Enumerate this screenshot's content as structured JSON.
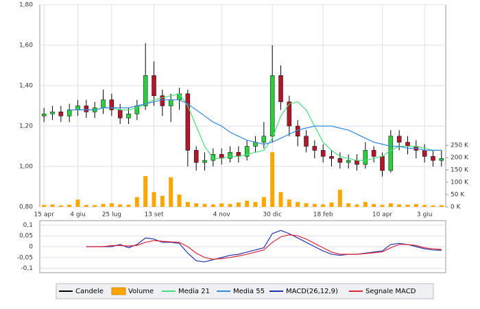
{
  "chart_data": [
    {
      "type": "candlestick",
      "xlim": [
        -0.5,
        47.5
      ],
      "xticks": [
        {
          "value": 0,
          "label": "15 apr"
        },
        {
          "value": 4,
          "label": "4 giu"
        },
        {
          "value": 8,
          "label": "25 lug"
        },
        {
          "value": 13,
          "label": "13 set"
        },
        {
          "value": 21,
          "label": "4 nov"
        },
        {
          "value": 27,
          "label": "30 dic"
        },
        {
          "value": 33,
          "label": "18 feb"
        },
        {
          "value": 40,
          "label": "10 apr"
        },
        {
          "value": 45,
          "label": "3 giu"
        }
      ],
      "ylim": [
        0.8,
        1.8
      ],
      "yticks": [
        {
          "value": 0.8,
          "label": "0,80"
        },
        {
          "value": 1.0,
          "label": "1,00"
        },
        {
          "value": 1.2,
          "label": "1,20"
        },
        {
          "value": 1.4,
          "label": "1,40"
        },
        {
          "value": 1.6,
          "label": "1,60"
        },
        {
          "value": 1.8,
          "label": "1,80"
        }
      ],
      "y2lim": [
        0,
        820000
      ],
      "y2ticks": [
        {
          "value": 0,
          "label": "0 K"
        },
        {
          "value": 50000,
          "label": "50 K"
        },
        {
          "value": 100000,
          "label": "100 K"
        },
        {
          "value": 150000,
          "label": "150 K"
        },
        {
          "value": 200000,
          "label": "200 K"
        },
        {
          "value": 250000,
          "label": "250 K"
        }
      ],
      "grid": true,
      "series": [
        {
          "name": "Candele",
          "type": "candlestick",
          "color": "#000000",
          "up_color": "#2ecc40",
          "down_color": "#b0172a",
          "open": [
            1.25,
            1.26,
            1.27,
            1.25,
            1.28,
            1.3,
            1.27,
            1.29,
            1.33,
            1.28,
            1.24,
            1.26,
            1.3,
            1.45,
            1.35,
            1.3,
            1.33,
            1.36,
            1.08,
            1.02,
            1.03,
            1.06,
            1.04,
            1.07,
            1.05,
            1.1,
            1.12,
            1.15,
            1.45,
            1.32,
            1.2,
            1.15,
            1.1,
            1.08,
            1.05,
            1.04,
            1.02,
            1.03,
            1.01,
            1.08,
            1.05,
            0.98,
            1.15,
            1.12,
            1.1,
            1.08,
            1.05,
            1.03
          ],
          "high": [
            1.29,
            1.3,
            1.3,
            1.31,
            1.33,
            1.33,
            1.32,
            1.38,
            1.36,
            1.31,
            1.29,
            1.33,
            1.61,
            1.52,
            1.38,
            1.36,
            1.39,
            1.38,
            1.1,
            1.07,
            1.09,
            1.09,
            1.1,
            1.1,
            1.13,
            1.15,
            1.22,
            1.6,
            1.5,
            1.35,
            1.23,
            1.18,
            1.13,
            1.11,
            1.08,
            1.07,
            1.06,
            1.06,
            1.12,
            1.1,
            1.07,
            1.18,
            1.18,
            1.15,
            1.13,
            1.11,
            1.08,
            1.08
          ],
          "low": [
            1.22,
            1.23,
            1.22,
            1.22,
            1.25,
            1.24,
            1.24,
            1.26,
            1.25,
            1.21,
            1.21,
            1.23,
            1.28,
            1.3,
            1.25,
            1.22,
            1.28,
            1.0,
            0.98,
            0.98,
            1.0,
            1.01,
            1.02,
            1.02,
            1.03,
            1.07,
            1.09,
            1.12,
            1.28,
            1.15,
            1.1,
            1.07,
            1.04,
            1.02,
            1.0,
            0.99,
            0.99,
            0.98,
            0.99,
            1.02,
            0.95,
            0.97,
            1.08,
            1.06,
            1.04,
            1.02,
            1.0,
            1.0
          ],
          "close": [
            1.26,
            1.27,
            1.25,
            1.28,
            1.3,
            1.27,
            1.29,
            1.33,
            1.28,
            1.24,
            1.26,
            1.3,
            1.45,
            1.35,
            1.3,
            1.33,
            1.36,
            1.08,
            1.02,
            1.03,
            1.06,
            1.04,
            1.07,
            1.05,
            1.1,
            1.12,
            1.15,
            1.45,
            1.32,
            1.2,
            1.15,
            1.1,
            1.08,
            1.05,
            1.04,
            1.02,
            1.03,
            1.01,
            1.08,
            1.05,
            0.98,
            1.15,
            1.12,
            1.1,
            1.08,
            1.05,
            1.03,
            1.04
          ]
        },
        {
          "name": "Volume",
          "type": "bar",
          "axis": "y2",
          "color": "#ffa500",
          "values": [
            8000,
            10000,
            6000,
            9000,
            30000,
            8000,
            7000,
            12000,
            15000,
            10000,
            9000,
            40000,
            125000,
            60000,
            45000,
            120000,
            50000,
            20000,
            15000,
            12000,
            10000,
            14000,
            12000,
            18000,
            25000,
            20000,
            40000,
            222000,
            60000,
            30000,
            20000,
            15000,
            12000,
            10000,
            18000,
            70000,
            15000,
            10000,
            20000,
            12000,
            8000,
            15000,
            10000,
            9000,
            12000,
            8000,
            6000,
            7000
          ]
        },
        {
          "name": "Media 21",
          "type": "line",
          "color": "#44dd77",
          "values": [
            null,
            null,
            null,
            null,
            1.28,
            1.28,
            1.28,
            1.29,
            1.29,
            1.28,
            1.28,
            1.29,
            1.31,
            1.33,
            1.34,
            1.35,
            1.36,
            1.3,
            1.2,
            1.1,
            1.04,
            1.04,
            1.05,
            1.05,
            1.06,
            1.07,
            1.08,
            1.14,
            1.25,
            1.31,
            1.32,
            1.28,
            1.2,
            1.12,
            1.08,
            1.05,
            1.04,
            1.03,
            1.03,
            1.04,
            1.05,
            1.08,
            1.1,
            1.1,
            1.1,
            1.09,
            1.08,
            1.08
          ]
        },
        {
          "name": "Media 55",
          "type": "line",
          "color": "#3388dd",
          "values": [
            null,
            null,
            null,
            1.28,
            1.28,
            1.28,
            1.28,
            1.29,
            1.29,
            1.29,
            1.29,
            1.3,
            1.31,
            1.32,
            1.33,
            1.33,
            1.33,
            1.31,
            1.28,
            1.25,
            1.22,
            1.2,
            1.17,
            1.15,
            1.13,
            1.12,
            1.11,
            1.12,
            1.14,
            1.16,
            1.18,
            1.19,
            1.2,
            1.2,
            1.2,
            1.19,
            1.18,
            1.16,
            1.14,
            1.12,
            1.11,
            1.1,
            1.1,
            1.09,
            1.09,
            1.08,
            1.08,
            1.08
          ]
        }
      ]
    },
    {
      "type": "line",
      "xlim": [
        -0.5,
        47.5
      ],
      "ylim": [
        -0.12,
        0.12
      ],
      "yticks": [
        {
          "value": 0.1,
          "label": "0,1"
        },
        {
          "value": 0.05,
          "label": "0,05"
        },
        0,
        {
          "value": -0.05,
          "label": "-0,05"
        },
        {
          "value": -0.1,
          "label": "-0,1"
        }
      ],
      "grid": true,
      "series": [
        {
          "name": "MACD(26,12,9)",
          "color": "#2233aa",
          "values": [
            null,
            null,
            null,
            null,
            null,
            0,
            0,
            0,
            0,
            0.01,
            -0.005,
            0.01,
            0.04,
            0.035,
            0.02,
            0.02,
            0.015,
            -0.03,
            -0.065,
            -0.07,
            -0.06,
            -0.05,
            -0.04,
            -0.035,
            -0.025,
            -0.015,
            -0.005,
            0.06,
            0.075,
            0.06,
            0.04,
            0.02,
            0,
            -0.02,
            -0.035,
            -0.04,
            -0.035,
            -0.035,
            -0.03,
            -0.025,
            -0.02,
            0.01,
            0.015,
            0.01,
            0,
            -0.01,
            -0.015,
            -0.017
          ]
        },
        {
          "name": "Segnale MACD",
          "color": "#dd2233",
          "values": [
            null,
            null,
            null,
            null,
            null,
            0,
            0,
            0,
            0.005,
            0.005,
            0.003,
            0.006,
            0.02,
            0.028,
            0.025,
            0.022,
            0.02,
            0,
            -0.03,
            -0.05,
            -0.058,
            -0.055,
            -0.05,
            -0.043,
            -0.035,
            -0.025,
            -0.015,
            0.02,
            0.045,
            0.055,
            0.05,
            0.035,
            0.015,
            -0.005,
            -0.025,
            -0.035,
            -0.035,
            -0.035,
            -0.032,
            -0.028,
            -0.024,
            -0.005,
            0.01,
            0.01,
            0.005,
            -0.005,
            -0.01,
            -0.013
          ]
        }
      ]
    }
  ]
}
